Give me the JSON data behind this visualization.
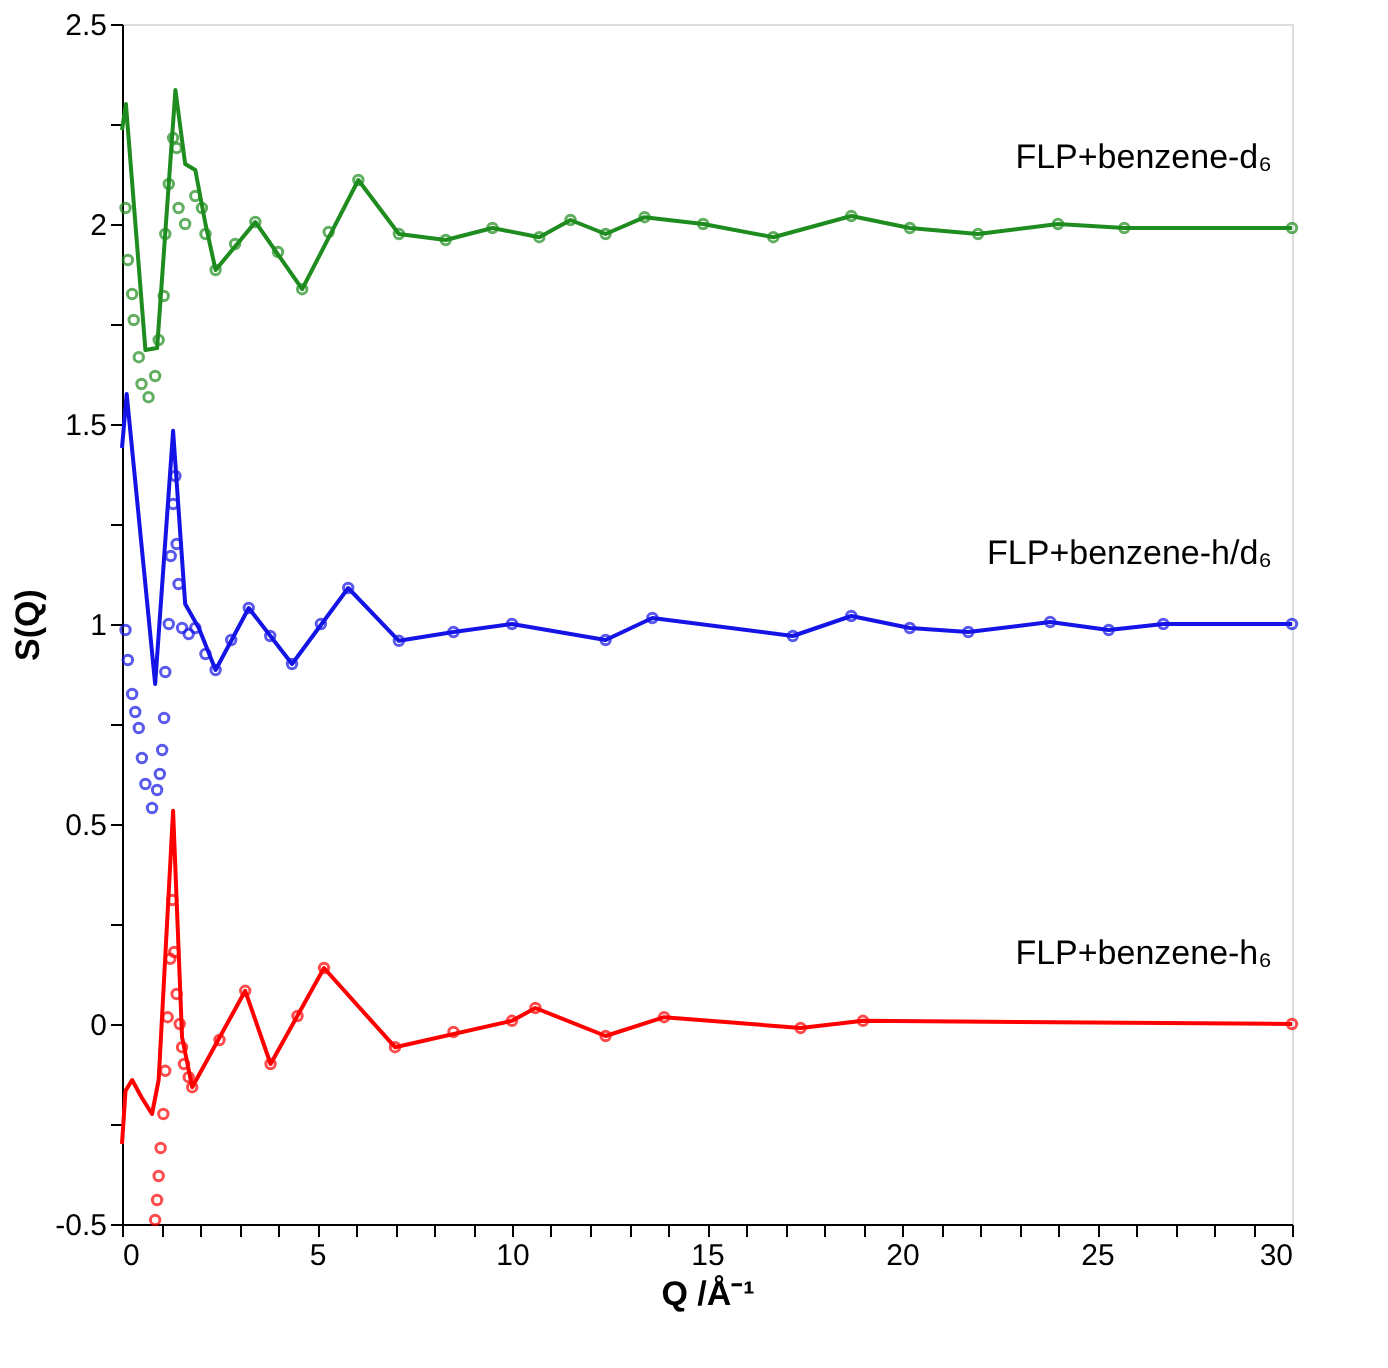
{
  "chart_data": {
    "type": "line",
    "xlabel": "Q /Å⁻¹",
    "ylabel": "S(Q)",
    "xlim": [
      0,
      30
    ],
    "ylim": [
      -0.5,
      2.5
    ],
    "xticks": [
      0,
      {
        "value": 1,
        "label": null
      },
      {
        "value": 2,
        "label": null
      },
      {
        "value": 3,
        "label": null
      },
      {
        "value": 4,
        "label": null
      },
      5,
      {
        "value": 6,
        "label": null
      },
      {
        "value": 7,
        "label": null
      },
      {
        "value": 8,
        "label": null
      },
      {
        "value": 9,
        "label": null
      },
      10,
      {
        "value": 11,
        "label": null
      },
      {
        "value": 12,
        "label": null
      },
      {
        "value": 13,
        "label": null
      },
      {
        "value": 14,
        "label": null
      },
      15,
      {
        "value": 16,
        "label": null
      },
      {
        "value": 17,
        "label": null
      },
      {
        "value": 18,
        "label": null
      },
      {
        "value": 19,
        "label": null
      },
      20,
      {
        "value": 21,
        "label": null
      },
      {
        "value": 22,
        "label": null
      },
      {
        "value": 23,
        "label": null
      },
      {
        "value": 24,
        "label": null
      },
      25,
      {
        "value": 26,
        "label": null
      },
      {
        "value": 27,
        "label": null
      },
      {
        "value": 28,
        "label": null
      },
      {
        "value": 29,
        "label": null
      },
      30
    ],
    "yticks": [
      -0.5,
      {
        "value": -0.25,
        "label": null
      },
      0,
      {
        "value": 0.25,
        "label": null
      },
      0.5,
      {
        "value": 0.75,
        "label": null
      },
      1,
      {
        "value": 1.25,
        "label": null
      },
      1.5,
      {
        "value": 1.75,
        "label": null
      },
      2,
      {
        "value": 2.25,
        "label": null
      },
      2.5
    ],
    "grid": false,
    "series": [
      {
        "line_style": "solid",
        "color": "#1e8c1e",
        "x": [
          0,
          0.1,
          0.6,
          0.9,
          1.37,
          1.62,
          1.88,
          2.14,
          2.4,
          3.42,
          4.62,
          6.06,
          7.1,
          8.3,
          9.5,
          10.7,
          11.5,
          12.4,
          13.4,
          14.9,
          16.7,
          18.7,
          20.2,
          21.95,
          24,
          25.7,
          30
        ],
        "values": [
          2.235,
          2.3,
          1.685,
          1.69,
          2.335,
          2.15,
          2.135,
          2.0,
          1.885,
          2.005,
          1.837,
          2.11,
          1.975,
          1.96,
          1.99,
          1.967,
          2.01,
          1.975,
          2.017,
          2.0,
          1.967,
          2.02,
          1.99,
          1.975,
          2.0,
          1.99,
          1.99
        ]
      },
      {
        "type": "scatter",
        "marker": "circle",
        "color": "#1e8c1e",
        "x": [
          0.09,
          0.15,
          0.26,
          0.3,
          0.43,
          0.5,
          0.68,
          0.85,
          0.94,
          1.07,
          1.11,
          1.2,
          1.31,
          1.4,
          1.45,
          1.62,
          1.88,
          2.05,
          2.14,
          2.4,
          2.9,
          3.42,
          4.0,
          4.62,
          5.3,
          6.06,
          7.1,
          8.3,
          9.5,
          10.7,
          11.5,
          12.4,
          13.4,
          14.9,
          16.7,
          18.7,
          20.2,
          21.95,
          24,
          25.7,
          30
        ],
        "values": [
          2.04,
          1.91,
          1.825,
          1.76,
          1.667,
          1.6,
          1.567,
          1.62,
          1.71,
          1.82,
          1.975,
          2.1,
          2.215,
          2.19,
          2.04,
          2.0,
          2.07,
          2.04,
          1.975,
          1.885,
          1.95,
          2.005,
          1.93,
          1.837,
          1.98,
          2.11,
          1.975,
          1.96,
          1.99,
          1.967,
          2.01,
          1.975,
          2.017,
          2.0,
          1.967,
          2.02,
          1.99,
          1.975,
          2.0,
          1.99,
          1.99
        ]
      },
      {
        "line_style": "solid",
        "color": "#1414e6",
        "x": [
          0,
          0.12,
          0.85,
          1.31,
          1.62,
          1.97,
          2.4,
          3.25,
          4.36,
          5.8,
          7.1,
          8.5,
          10,
          12.4,
          13.6,
          17.2,
          18.7,
          20.2,
          21.7,
          23.8,
          25.3,
          26.7,
          30
        ],
        "values": [
          1.44,
          1.575,
          0.85,
          1.483,
          1.05,
          0.99,
          0.885,
          1.04,
          0.9,
          1.09,
          0.958,
          0.98,
          1.0,
          0.96,
          1.015,
          0.97,
          1.02,
          0.99,
          0.98,
          1.005,
          0.985,
          1.0,
          1.0
        ]
      },
      {
        "type": "scatter",
        "marker": "circle",
        "color": "#1414e6",
        "x": [
          0.09,
          0.15,
          0.26,
          0.34,
          0.43,
          0.51,
          0.6,
          0.77,
          0.9,
          0.97,
          1.03,
          1.08,
          1.11,
          1.2,
          1.25,
          1.31,
          1.37,
          1.4,
          1.45,
          1.54,
          1.71,
          1.88,
          2.14,
          2.4,
          2.8,
          3.25,
          3.8,
          4.36,
          5.1,
          5.8,
          7.1,
          8.5,
          10,
          12.4,
          13.6,
          17.2,
          18.7,
          20.2,
          21.7,
          23.8,
          25.3,
          26.7,
          30
        ],
        "values": [
          0.985,
          0.91,
          0.825,
          0.78,
          0.74,
          0.665,
          0.6,
          0.54,
          0.585,
          0.625,
          0.685,
          0.765,
          0.88,
          1.0,
          1.17,
          1.3,
          1.37,
          1.2,
          1.1,
          0.99,
          0.975,
          0.99,
          0.925,
          0.885,
          0.96,
          1.04,
          0.97,
          0.9,
          1.0,
          1.09,
          0.958,
          0.98,
          1.0,
          0.96,
          1.015,
          0.97,
          1.02,
          0.99,
          0.98,
          1.005,
          0.985,
          1.0,
          1.0
        ]
      },
      {
        "line_style": "solid",
        "color": "#ff0000",
        "x": [
          0,
          0.09,
          0.26,
          0.5,
          0.77,
          0.94,
          1.31,
          1.54,
          1.8,
          3.16,
          3.81,
          5.18,
          7.0,
          10,
          10.6,
          12.4,
          13.9,
          17.4,
          19,
          30
        ],
        "values": [
          -0.3,
          -0.167,
          -0.14,
          -0.183,
          -0.225,
          -0.14,
          0.533,
          -0.033,
          -0.158,
          0.083,
          -0.1,
          0.14,
          -0.058,
          0.008,
          0.04,
          -0.03,
          0.017,
          -0.01,
          0.008,
          0.0
        ]
      },
      {
        "type": "scatter",
        "marker": "circle",
        "color": "#ff0000",
        "x": [
          0.85,
          0.9,
          0.94,
          0.99,
          1.06,
          1.11,
          1.17,
          1.24,
          1.29,
          1.34,
          1.4,
          1.48,
          1.54,
          1.59,
          1.71,
          1.8,
          2.5,
          3.16,
          3.81,
          4.5,
          5.18,
          7.0,
          8.5,
          10,
          10.6,
          12.4,
          13.9,
          17.4,
          19,
          30
        ],
        "values": [
          -0.49,
          -0.44,
          -0.38,
          -0.31,
          -0.225,
          -0.117,
          0.017,
          0.163,
          0.31,
          0.18,
          0.075,
          0.0,
          -0.058,
          -0.1,
          -0.133,
          -0.158,
          -0.04,
          0.083,
          -0.1,
          0.02,
          0.14,
          -0.058,
          -0.02,
          0.008,
          0.04,
          -0.03,
          0.017,
          -0.01,
          0.008,
          0.0
        ]
      }
    ],
    "annotations": [
      "FLP+benzene-d₆",
      "FLP+benzene-h/d₆",
      "FLP+benzene-h₆"
    ]
  }
}
